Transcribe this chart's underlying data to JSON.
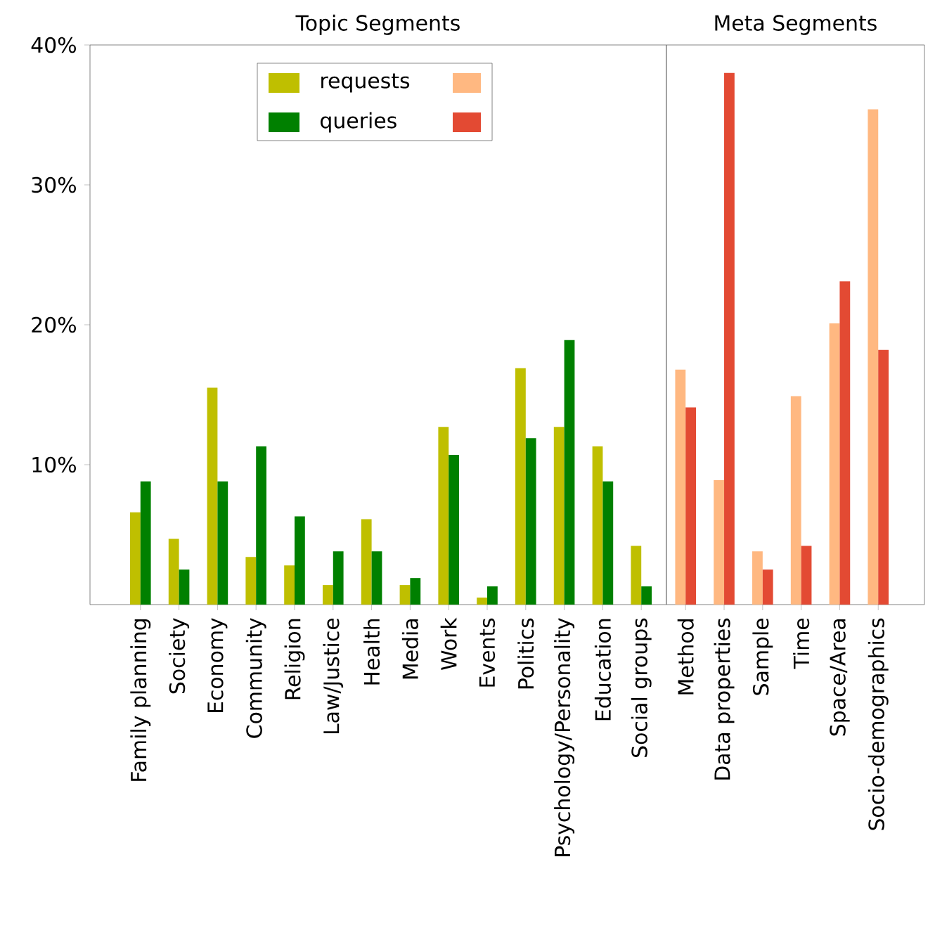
{
  "chart_data": [
    {
      "type": "bar",
      "title": "Topic Segments",
      "categories": [
        "Family planning",
        "Society",
        "Economy",
        "Community",
        "Religion",
        "Law/Justice",
        "Health",
        "Media",
        "Work",
        "Events",
        "Politics",
        "Psychology/Personality",
        "Education",
        "Social groups"
      ],
      "series": [
        {
          "name": "requests",
          "color": "#bfbf00",
          "values": [
            6.6,
            4.7,
            15.5,
            3.4,
            2.8,
            1.4,
            6.1,
            1.4,
            12.7,
            0.5,
            16.9,
            12.7,
            11.3,
            4.2
          ]
        },
        {
          "name": "queries",
          "color": "#008000",
          "values": [
            8.8,
            2.5,
            8.8,
            11.3,
            6.3,
            3.8,
            3.8,
            1.9,
            10.7,
            1.3,
            11.9,
            18.9,
            8.8,
            1.3
          ]
        }
      ],
      "ylim": [
        0,
        40
      ],
      "yticks": [
        {
          "value": 10,
          "label": "10%"
        },
        {
          "value": 20,
          "label": "20%"
        },
        {
          "value": 30,
          "label": "30%"
        },
        {
          "value": 40,
          "label": "40%"
        }
      ],
      "legend": "top"
    },
    {
      "type": "bar",
      "title": "Meta Segments",
      "categories": [
        "Method",
        "Data properties",
        "Sample",
        "Time",
        "Space/Area",
        "Socio-demographics"
      ],
      "series": [
        {
          "color": "#ffb881",
          "values": [
            16.8,
            8.9,
            3.8,
            14.9,
            20.1,
            35.4
          ]
        },
        {
          "color": "#e34a33",
          "values": [
            14.1,
            38.0,
            2.5,
            4.2,
            23.1,
            18.2
          ]
        }
      ],
      "ylim": [
        0,
        40
      ],
      "tick_labels": "x"
    }
  ]
}
